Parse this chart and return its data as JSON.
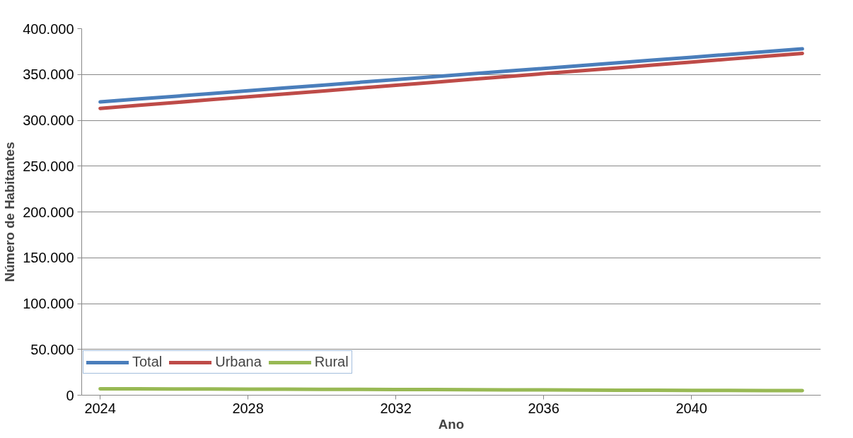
{
  "chart_data": {
    "type": "line",
    "xlabel": "Ano",
    "ylabel": "Número de Habitantes",
    "x": [
      2024,
      2025,
      2026,
      2027,
      2028,
      2029,
      2030,
      2031,
      2032,
      2033,
      2034,
      2035,
      2036,
      2037,
      2038,
      2039,
      2040,
      2041,
      2042,
      2043
    ],
    "xlim": [
      2023.5,
      2043.5
    ],
    "xticks": [
      2024,
      2028,
      2032,
      2036,
      2040
    ],
    "ylim": [
      0,
      400000
    ],
    "yticks": [
      0,
      {
        "value": 50000,
        "label": "50.000"
      },
      {
        "value": 100000,
        "label": "100.000"
      },
      {
        "value": 150000,
        "label": "150.000"
      },
      {
        "value": 200000,
        "label": "200.000"
      },
      {
        "value": 250000,
        "label": "250.000"
      },
      {
        "value": 300000,
        "label": "300.000"
      },
      {
        "value": 350000,
        "label": "350.000"
      },
      {
        "value": 400000,
        "label": "400.000"
      }
    ],
    "grid": "y",
    "legend": "bottom left",
    "marker": "none",
    "line_style": "solid",
    "series": [
      {
        "name": "Total",
        "color": "#4a7ebb",
        "values": [
          320000,
          323100,
          326100,
          329200,
          332200,
          335300,
          338300,
          341400,
          344400,
          347500,
          350500,
          353600,
          356600,
          359700,
          362700,
          365800,
          368800,
          371900,
          374900,
          378000
        ]
      },
      {
        "name": "Urbana",
        "color": "#be4b48",
        "values": [
          313000,
          316200,
          319300,
          322500,
          325600,
          328800,
          331900,
          335100,
          338300,
          341400,
          344600,
          347700,
          350900,
          354100,
          357200,
          360400,
          363500,
          366700,
          369800,
          373000
        ]
      },
      {
        "name": "Rural",
        "color": "#98b954",
        "values": [
          7000,
          6900,
          6800,
          6700,
          6600,
          6500,
          6400,
          6300,
          6200,
          6100,
          5900,
          5800,
          5700,
          5600,
          5500,
          5400,
          5300,
          5200,
          5100,
          5000
        ]
      }
    ]
  }
}
